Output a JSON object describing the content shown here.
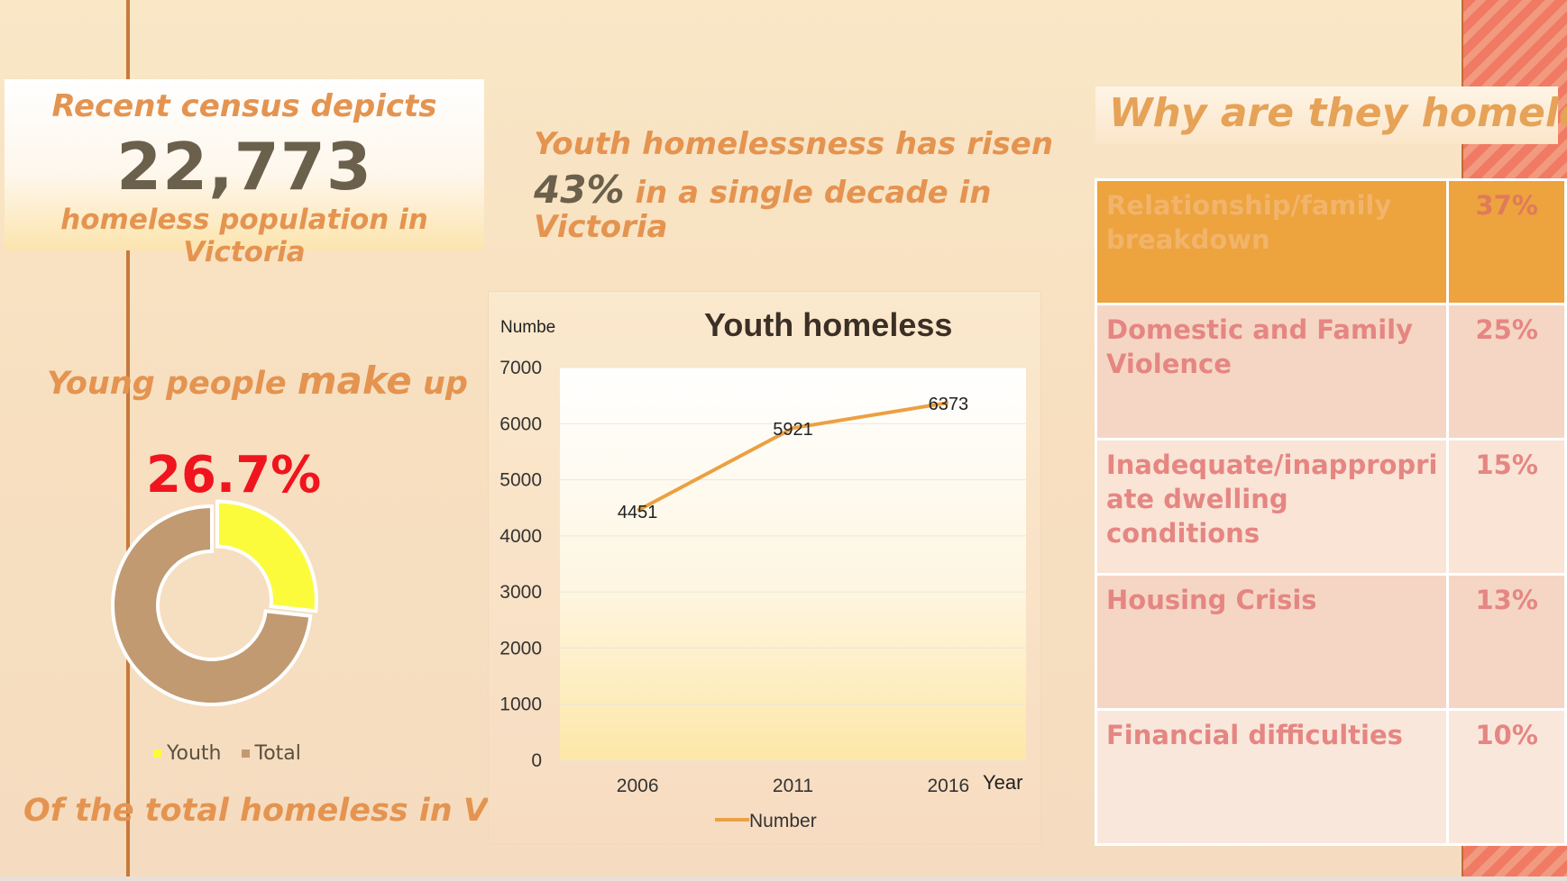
{
  "census": {
    "title": "Recent census depicts",
    "number": "22,773",
    "subtitle": "homeless population in Victoria"
  },
  "risen": {
    "line1": "Youth homelessness has risen",
    "pct": "43%",
    "line2_rest": " in a single decade in",
    "line3": "Victoria"
  },
  "young": {
    "prefix": "Young people ",
    "big": "make",
    "suffix": " up",
    "pct": "26.7%",
    "footer": "Of the total homeless in VIC"
  },
  "why": {
    "title": "Why are they homeless",
    "rows": [
      {
        "reason_line1": "Relationship/family",
        "reason_line2": "breakdown",
        "reason_line3": "",
        "pct": "37%"
      },
      {
        "reason_line1": "Domestic and Family",
        "reason_line2": "Violence",
        "reason_line3": "",
        "pct": "25%"
      },
      {
        "reason_line1": "Inadequate/inappropri",
        "reason_line2": "ate  dwelling",
        "reason_line3": "conditions",
        "pct": "15%"
      },
      {
        "reason_line1": "Housing Crisis",
        "reason_line2": "",
        "reason_line3": "",
        "pct": "13%"
      },
      {
        "reason_line1": "Financial difficulties",
        "reason_line2": "",
        "reason_line3": "",
        "pct": "10%"
      }
    ]
  },
  "colors": {
    "accent_orange": "#e49450",
    "line": "#eba042",
    "youth": "#fbfb3c",
    "total": "#c19a72",
    "highlight_red": "#f0141e"
  },
  "chart_data": [
    {
      "type": "line",
      "title": "Youth homeless",
      "xlabel": "Year",
      "ylabel": "Numbe",
      "categories": [
        "2006",
        "2011",
        "2016"
      ],
      "series": [
        {
          "name": "Number",
          "values": [
            4451,
            5921,
            6373
          ]
        }
      ],
      "ylim": [
        0,
        7000
      ],
      "yticks": [
        "0",
        "1000",
        "2000",
        "3000",
        "4000",
        "5000",
        "6000",
        "7000"
      ],
      "grid": true,
      "legend": "bottom"
    },
    {
      "type": "pie",
      "variant": "donut",
      "categories": [
        "Youth",
        "Total"
      ],
      "values": [
        26.7,
        73.3
      ],
      "legend": "bottom"
    }
  ]
}
